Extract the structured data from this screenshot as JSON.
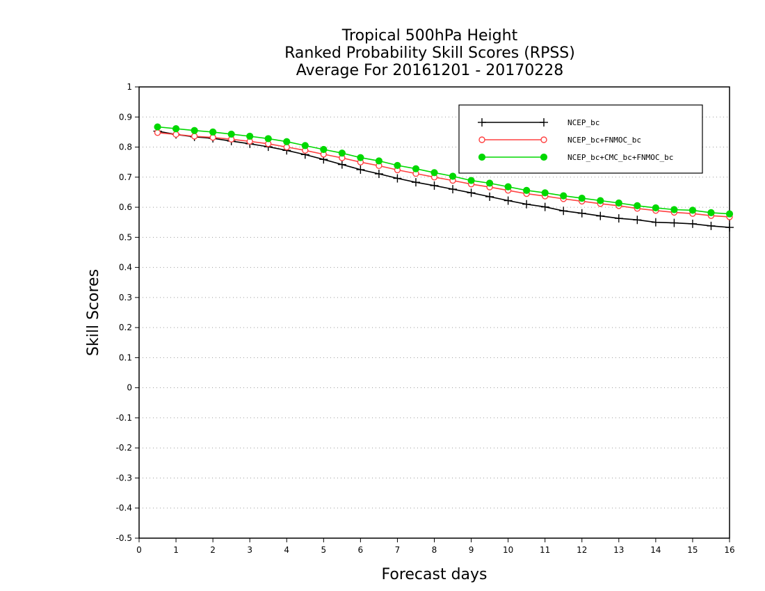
{
  "chart_data": {
    "type": "line",
    "title_lines": [
      "Tropical 500hPa Height",
      "Ranked Probability Skill Scores (RPSS)",
      "Average For 20161201 - 20170228"
    ],
    "xlabel": "Forecast days",
    "ylabel": "Skill Scores",
    "xlim": [
      0,
      16
    ],
    "ylim": [
      -0.5,
      1
    ],
    "x_ticks": [
      "0",
      "1",
      "2",
      "3",
      "4",
      "5",
      "6",
      "7",
      "8",
      "9",
      "10",
      "11",
      "12",
      "13",
      "14",
      "15",
      "16"
    ],
    "y_ticks": [
      "1",
      "0.9",
      "0.8",
      "0.7",
      "0.6",
      "0.5",
      "0.4",
      "0.3",
      "0.2",
      "0.1",
      "0",
      "-0.1",
      "-0.2",
      "-0.3",
      "-0.4",
      "-0.5"
    ],
    "grid": "horizontal dotted",
    "legend_position": "top-right",
    "x": [
      0.5,
      1,
      1.5,
      2,
      2.5,
      3,
      3.5,
      4,
      4.5,
      5,
      5.5,
      6,
      6.5,
      7,
      7.5,
      8,
      8.5,
      9,
      9.5,
      10,
      10.5,
      11,
      11.5,
      12,
      12.5,
      13,
      13.5,
      14,
      14.5,
      15,
      15.5,
      16
    ],
    "series": [
      {
        "name": "NCEP_bc",
        "color": "#000000",
        "marker": "plus",
        "values": [
          0.853,
          0.842,
          0.834,
          0.829,
          0.82,
          0.811,
          0.801,
          0.789,
          0.775,
          0.759,
          0.742,
          0.725,
          0.711,
          0.696,
          0.683,
          0.672,
          0.66,
          0.648,
          0.635,
          0.622,
          0.61,
          0.601,
          0.588,
          0.58,
          0.571,
          0.563,
          0.558,
          0.55,
          0.548,
          0.545,
          0.538,
          0.533
        ]
      },
      {
        "name": "NCEP_bc+FNMOC_bc",
        "color": "#ff4040",
        "marker": "open-circle",
        "values": [
          0.848,
          0.842,
          0.836,
          0.832,
          0.826,
          0.819,
          0.811,
          0.8,
          0.789,
          0.776,
          0.764,
          0.75,
          0.738,
          0.724,
          0.712,
          0.7,
          0.689,
          0.677,
          0.667,
          0.656,
          0.645,
          0.637,
          0.628,
          0.62,
          0.612,
          0.605,
          0.596,
          0.589,
          0.583,
          0.579,
          0.572,
          0.568
        ]
      },
      {
        "name": "NCEP_bc+CMC_bc+FNMOC_bc",
        "color": "#00d800",
        "marker": "filled-circle",
        "values": [
          0.867,
          0.861,
          0.855,
          0.85,
          0.843,
          0.836,
          0.828,
          0.818,
          0.805,
          0.792,
          0.78,
          0.765,
          0.754,
          0.739,
          0.728,
          0.715,
          0.703,
          0.689,
          0.68,
          0.668,
          0.656,
          0.648,
          0.638,
          0.63,
          0.622,
          0.614,
          0.605,
          0.598,
          0.592,
          0.59,
          0.582,
          0.578
        ]
      }
    ]
  }
}
